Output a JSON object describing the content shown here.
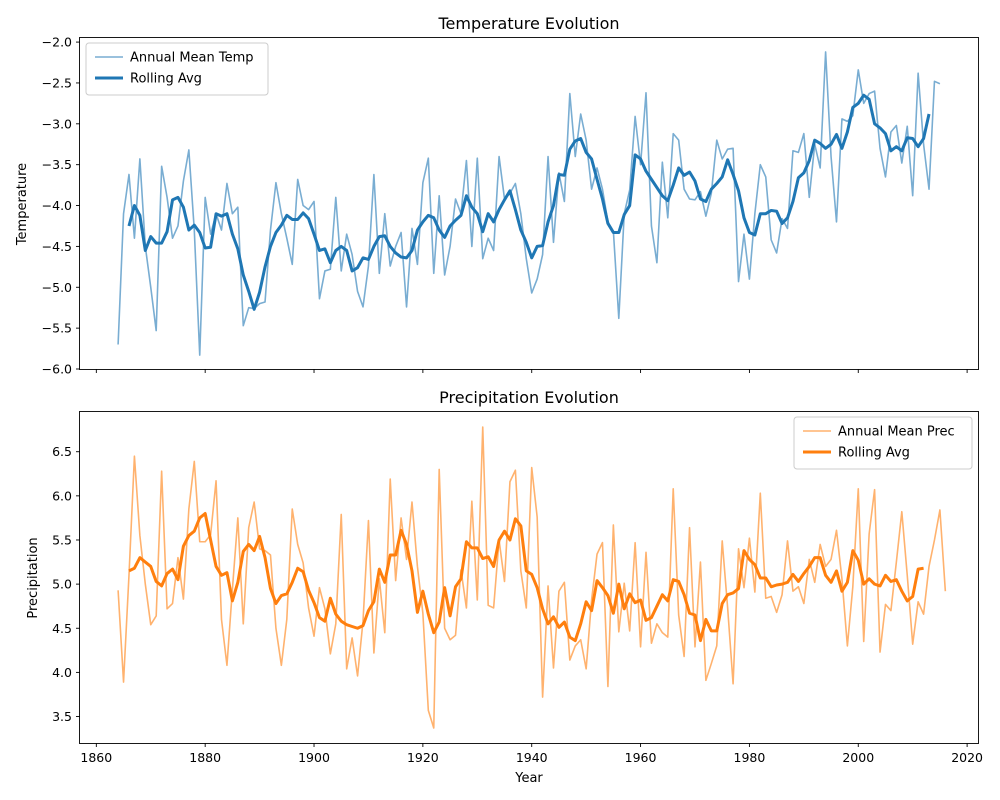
{
  "chart_data": [
    {
      "type": "line",
      "title": "Temperature Evolution",
      "xlabel": "",
      "ylabel": "Temperature",
      "xlim": [
        1857,
        2022
      ],
      "ylim": [
        -6.0,
        -1.95
      ],
      "xticks": [
        1860,
        1880,
        1900,
        1920,
        1940,
        1960,
        1980,
        2000,
        2020
      ],
      "yticks": [
        -6.0,
        -5.5,
        -5.0,
        -4.5,
        -4.0,
        -3.5,
        -3.0,
        -2.5,
        -2.0
      ],
      "ytick_labels": [
        "−6.0",
        "−5.5",
        "−5.0",
        "−4.5",
        "−4.0",
        "−3.5",
        "−3.0",
        "−2.5",
        "−2.0"
      ],
      "show_xtick_labels": false,
      "legend_position": "upper-left",
      "series": [
        {
          "name": "Annual Mean Temp",
          "color": "#1f77b4",
          "opacity": 0.6,
          "width": 1.6,
          "x_start": 1864,
          "values": [
            -5.7,
            -4.1,
            -3.62,
            -4.4,
            -3.43,
            -4.5,
            -5.0,
            -5.53,
            -3.52,
            -3.9,
            -4.4,
            -4.25,
            -3.7,
            -3.32,
            -4.3,
            -5.83,
            -3.9,
            -4.35,
            -4.1,
            -4.3,
            -3.73,
            -4.1,
            -4.02,
            -5.47,
            -5.25,
            -5.26,
            -5.2,
            -5.18,
            -4.3,
            -3.72,
            -4.1,
            -4.4,
            -4.72,
            -3.68,
            -4.0,
            -4.05,
            -3.95,
            -5.14,
            -4.8,
            -4.78,
            -3.9,
            -4.8,
            -4.35,
            -4.6,
            -5.05,
            -5.24,
            -4.74,
            -3.62,
            -4.83,
            -4.1,
            -4.74,
            -4.5,
            -4.33,
            -5.24,
            -4.28,
            -4.72,
            -3.72,
            -3.42,
            -4.83,
            -3.88,
            -4.85,
            -4.5,
            -3.92,
            -4.1,
            -3.45,
            -4.5,
            -3.42,
            -4.65,
            -4.4,
            -4.55,
            -3.4,
            -3.92,
            -3.85,
            -3.73,
            -4.1,
            -4.65,
            -5.07,
            -4.9,
            -4.6,
            -3.4,
            -4.45,
            -3.6,
            -3.95,
            -2.63,
            -3.4,
            -2.88,
            -3.2,
            -3.8,
            -3.54,
            -3.8,
            -4.2,
            -4.31,
            -5.38,
            -4.1,
            -3.81,
            -2.91,
            -3.5,
            -2.62,
            -4.25,
            -4.7,
            -3.47,
            -4.15,
            -3.12,
            -3.2,
            -3.8,
            -3.92,
            -3.93,
            -3.83,
            -4.13,
            -3.85,
            -3.2,
            -3.43,
            -3.31,
            -3.3,
            -4.93,
            -4.35,
            -4.9,
            -4.1,
            -3.5,
            -3.65,
            -4.42,
            -4.58,
            -4.16,
            -4.28,
            -3.33,
            -3.35,
            -3.12,
            -3.9,
            -3.25,
            -3.54,
            -2.12,
            -3.4,
            -4.2,
            -2.94,
            -2.97,
            -2.9,
            -2.34,
            -2.75,
            -2.63,
            -2.6,
            -3.3,
            -3.65,
            -3.1,
            -3.02,
            -3.48,
            -3.03,
            -3.88,
            -2.38,
            -3.25,
            -3.8,
            -2.48,
            -2.51
          ]
        },
        {
          "name": "Rolling Avg",
          "color": "#1f77b4",
          "opacity": 1.0,
          "width": 3,
          "x_start": 1866,
          "values": [
            -4.25,
            -4.0,
            -4.12,
            -4.55,
            -4.38,
            -4.46,
            -4.46,
            -4.32,
            -3.93,
            -3.9,
            -4.02,
            -4.3,
            -4.24,
            -4.33,
            -4.52,
            -4.51,
            -4.1,
            -4.13,
            -4.1,
            -4.35,
            -4.53,
            -4.85,
            -5.05,
            -5.27,
            -5.06,
            -4.75,
            -4.5,
            -4.33,
            -4.24,
            -4.12,
            -4.17,
            -4.17,
            -4.09,
            -4.16,
            -4.35,
            -4.55,
            -4.53,
            -4.7,
            -4.55,
            -4.5,
            -4.55,
            -4.8,
            -4.76,
            -4.64,
            -4.66,
            -4.5,
            -4.38,
            -4.37,
            -4.5,
            -4.58,
            -4.63,
            -4.64,
            -4.55,
            -4.3,
            -4.2,
            -4.12,
            -4.15,
            -4.3,
            -4.39,
            -4.25,
            -4.18,
            -4.12,
            -3.88,
            -4.02,
            -4.1,
            -4.32,
            -4.1,
            -4.2,
            -4.05,
            -3.93,
            -3.82,
            -4.05,
            -4.3,
            -4.45,
            -4.64,
            -4.5,
            -4.49,
            -4.2,
            -4.0,
            -3.62,
            -3.63,
            -3.31,
            -3.21,
            -3.18,
            -3.35,
            -3.43,
            -3.68,
            -3.92,
            -4.22,
            -4.33,
            -4.33,
            -4.11,
            -4.0,
            -3.38,
            -3.43,
            -3.58,
            -3.68,
            -3.78,
            -3.88,
            -3.94,
            -3.75,
            -3.54,
            -3.63,
            -3.59,
            -3.7,
            -3.92,
            -3.95,
            -3.8,
            -3.73,
            -3.65,
            -3.44,
            -3.62,
            -3.82,
            -4.15,
            -4.33,
            -4.36,
            -4.1,
            -4.1,
            -4.06,
            -4.07,
            -4.22,
            -4.15,
            -3.95,
            -3.66,
            -3.6,
            -3.45,
            -3.2,
            -3.24,
            -3.3,
            -3.25,
            -3.13,
            -3.3,
            -3.1,
            -2.8,
            -2.75,
            -2.65,
            -2.7,
            -3.0,
            -3.05,
            -3.12,
            -3.33,
            -3.28,
            -3.33,
            -3.17,
            -3.18,
            -3.28,
            -3.18,
            -2.88
          ]
        }
      ]
    },
    {
      "type": "line",
      "title": "Precipitation Evolution",
      "xlabel": "Year",
      "ylabel": "Precipitation",
      "xlim": [
        1857,
        2022
      ],
      "ylim": [
        3.2,
        6.95
      ],
      "xticks": [
        1860,
        1880,
        1900,
        1920,
        1940,
        1960,
        1980,
        2000,
        2020
      ],
      "yticks": [
        3.5,
        4.0,
        4.5,
        5.0,
        5.5,
        6.0,
        6.5
      ],
      "ytick_labels": [
        "3.5",
        "4.0",
        "4.5",
        "5.0",
        "5.5",
        "6.0",
        "6.5"
      ],
      "xtick_labels": [
        "1860",
        "1880",
        "1900",
        "1920",
        "1940",
        "1960",
        "1980",
        "2000",
        "2020"
      ],
      "show_xtick_labels": true,
      "legend_position": "upper-right",
      "series": [
        {
          "name": "Annual Mean Prec",
          "color": "#ff7f0e",
          "opacity": 0.6,
          "width": 1.6,
          "x_start": 1864,
          "values": [
            4.93,
            3.89,
            5.1,
            6.45,
            5.55,
            5.0,
            4.54,
            4.64,
            6.28,
            4.72,
            4.78,
            5.3,
            4.83,
            5.85,
            6.39,
            5.48,
            5.48,
            5.56,
            6.17,
            4.6,
            4.08,
            4.94,
            5.75,
            4.55,
            5.64,
            5.93,
            5.4,
            5.38,
            5.33,
            4.5,
            4.08,
            4.6,
            5.85,
            5.45,
            5.24,
            4.73,
            4.41,
            4.96,
            4.72,
            4.21,
            4.55,
            5.79,
            4.04,
            4.39,
            3.96,
            4.58,
            5.72,
            4.22,
            5.06,
            4.45,
            6.19,
            5.04,
            5.75,
            5.28,
            5.93,
            5.2,
            4.67,
            3.57,
            3.37,
            6.3,
            4.5,
            4.37,
            4.42,
            5.16,
            4.73,
            5.94,
            4.82,
            6.78,
            4.76,
            4.73,
            5.5,
            5.03,
            6.16,
            6.29,
            5.15,
            4.73,
            6.32,
            5.76,
            3.72,
            4.98,
            4.05,
            4.92,
            5.02,
            4.14,
            4.3,
            4.37,
            4.04,
            4.82,
            5.34,
            5.47,
            3.84,
            5.67,
            4.46,
            5.01,
            4.47,
            5.47,
            4.29,
            5.36,
            4.33,
            4.55,
            4.45,
            4.4,
            6.08,
            4.65,
            4.18,
            5.64,
            4.29,
            5.25,
            3.91,
            4.1,
            4.3,
            5.49,
            4.73,
            3.87,
            5.4,
            4.96,
            5.52,
            4.91,
            6.03,
            4.84,
            4.86,
            4.68,
            4.88,
            5.49,
            4.92,
            4.97,
            4.78,
            5.28,
            5.02,
            5.45,
            5.2,
            5.28,
            5.61,
            5.06,
            4.3,
            4.97,
            6.08,
            4.35,
            5.57,
            6.07,
            4.23,
            4.77,
            4.7,
            5.25,
            5.82,
            5.1,
            4.32,
            4.8,
            4.66,
            5.2,
            5.5,
            5.84,
            4.92
          ]
        },
        {
          "name": "Rolling Avg",
          "color": "#ff7f0e",
          "opacity": 1.0,
          "width": 3,
          "x_start": 1866,
          "values": [
            5.15,
            5.18,
            5.3,
            5.25,
            5.2,
            5.03,
            4.98,
            5.12,
            5.17,
            5.05,
            5.43,
            5.55,
            5.6,
            5.75,
            5.8,
            5.5,
            5.2,
            5.1,
            5.13,
            4.81,
            5.02,
            5.37,
            5.45,
            5.38,
            5.54,
            5.3,
            4.95,
            4.78,
            4.87,
            4.89,
            5.02,
            5.18,
            5.14,
            4.93,
            4.79,
            4.62,
            4.58,
            4.84,
            4.66,
            4.58,
            4.54,
            4.52,
            4.5,
            4.53,
            4.7,
            4.8,
            5.17,
            5.02,
            5.33,
            5.33,
            5.61,
            5.45,
            5.15,
            4.68,
            4.92,
            4.66,
            4.45,
            4.57,
            4.96,
            4.64,
            4.97,
            5.06,
            5.48,
            5.41,
            5.41,
            5.29,
            5.31,
            5.2,
            5.5,
            5.6,
            5.5,
            5.74,
            5.66,
            5.15,
            5.11,
            4.96,
            4.72,
            4.55,
            4.63,
            4.51,
            4.57,
            4.4,
            4.36,
            4.55,
            4.8,
            4.7,
            5.04,
            4.96,
            4.87,
            4.67,
            5.0,
            4.72,
            4.89,
            4.79,
            4.82,
            4.59,
            4.62,
            4.75,
            4.88,
            4.81,
            5.05,
            5.03,
            4.88,
            4.67,
            4.65,
            4.36,
            4.6,
            4.47,
            4.47,
            4.78,
            4.88,
            4.9,
            4.95,
            5.38,
            5.28,
            5.22,
            5.07,
            5.07,
            4.97,
            4.99,
            5.0,
            5.02,
            5.11,
            5.03,
            5.12,
            5.2,
            5.3,
            5.3,
            5.1,
            5.02,
            5.15,
            4.92,
            5.02,
            5.38,
            5.27,
            5.0,
            5.06,
            5.0,
            4.98,
            5.1,
            5.03,
            5.05,
            4.92,
            4.81,
            4.86,
            5.17,
            5.18
          ]
        }
      ]
    }
  ]
}
